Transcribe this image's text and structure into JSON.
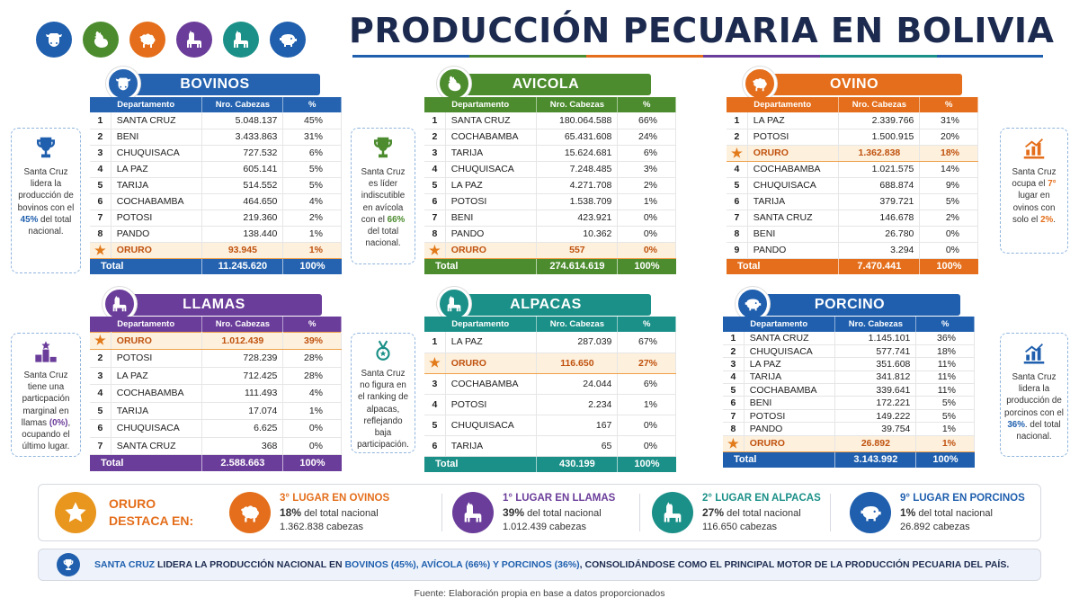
{
  "title": "PRODUCCIÓN PECUARIA EN BOLIVIA",
  "colors": {
    "bovinos": "#2563b0",
    "avicola": "#4c8c2e",
    "ovino": "#e46e1b",
    "llamas": "#6b3d9a",
    "alpacas": "#1b9088",
    "porcino": "#1f5fae",
    "navy": "#1c2a4f"
  },
  "top_icons": [
    "cow-icon",
    "chicken-icon",
    "sheep-icon",
    "llama-icon",
    "alpaca-icon",
    "pig-icon"
  ],
  "col_headers": {
    "dep": "Departamento",
    "cab": "Nro. Cabezas",
    "pct": "%"
  },
  "total_label": "Total",
  "bovinos": {
    "title": "BOVINOS",
    "rows": [
      [
        "1",
        "SANTA CRUZ",
        "5.048.137",
        "45%"
      ],
      [
        "2",
        "BENI",
        "3.433.863",
        "31%"
      ],
      [
        "3",
        "CHUQUISACA",
        "727.532",
        "6%"
      ],
      [
        "4",
        "LA PAZ",
        "605.141",
        "5%"
      ],
      [
        "5",
        "TARIJA",
        "514.552",
        "5%"
      ],
      [
        "6",
        "COCHABAMBA",
        "464.650",
        "4%"
      ],
      [
        "7",
        "POTOSI",
        "219.360",
        "2%"
      ],
      [
        "8",
        "PANDO",
        "138.440",
        "1%"
      ],
      [
        "★",
        "ORURO",
        "93.945",
        "1%"
      ]
    ],
    "highlight": 8,
    "total": [
      "11.245.620",
      "100%"
    ]
  },
  "avicola": {
    "title": "AVICOLA",
    "rows": [
      [
        "1",
        "SANTA CRUZ",
        "180.064.588",
        "66%"
      ],
      [
        "2",
        "COCHABAMBA",
        "65.431.608",
        "24%"
      ],
      [
        "3",
        "TARIJA",
        "15.624.681",
        "6%"
      ],
      [
        "4",
        "CHUQUISACA",
        "7.248.485",
        "3%"
      ],
      [
        "5",
        "LA PAZ",
        "4.271.708",
        "2%"
      ],
      [
        "6",
        "POTOSI",
        "1.538.709",
        "1%"
      ],
      [
        "7",
        "BENI",
        "423.921",
        "0%"
      ],
      [
        "8",
        "PANDO",
        "10.362",
        "0%"
      ],
      [
        "★",
        "ORURO",
        "557",
        "0%"
      ]
    ],
    "highlight": 8,
    "total": [
      "274.614.619",
      "100%"
    ]
  },
  "ovino": {
    "title": "OVINO",
    "rows": [
      [
        "1",
        "LA PAZ",
        "2.339.766",
        "31%"
      ],
      [
        "2",
        "POTOSI",
        "1.500.915",
        "20%"
      ],
      [
        "★",
        "ORURO",
        "1.362.838",
        "18%"
      ],
      [
        "4",
        "COCHABAMBA",
        "1.021.575",
        "14%"
      ],
      [
        "5",
        "CHUQUISACA",
        "688.874",
        "9%"
      ],
      [
        "6",
        "TARIJA",
        "379.721",
        "5%"
      ],
      [
        "7",
        "SANTA CRUZ",
        "146.678",
        "2%"
      ],
      [
        "8",
        "BENI",
        "26.780",
        "0%"
      ],
      [
        "9",
        "PANDO",
        "3.294",
        "0%"
      ]
    ],
    "highlight": 2,
    "total": [
      "7.470.441",
      "100%"
    ]
  },
  "llamas": {
    "title": "LLAMAS",
    "rows": [
      [
        "★",
        "ORURO",
        "1.012.439",
        "39%"
      ],
      [
        "2",
        "POTOSI",
        "728.239",
        "28%"
      ],
      [
        "3",
        "LA PAZ",
        "712.425",
        "28%"
      ],
      [
        "4",
        "COCHABAMBA",
        "111.493",
        "4%"
      ],
      [
        "5",
        "TARIJA",
        "17.074",
        "1%"
      ],
      [
        "6",
        "CHUQUISACA",
        "6.625",
        "0%"
      ],
      [
        "7",
        "SANTA CRUZ",
        "368",
        "0%"
      ]
    ],
    "highlight": 0,
    "total": [
      "2.588.663",
      "100%"
    ]
  },
  "alpacas": {
    "title": "ALPACAS",
    "rows": [
      [
        "1",
        "LA PAZ",
        "287.039",
        "67%"
      ],
      [
        "★",
        "ORURO",
        "116.650",
        "27%"
      ],
      [
        "3",
        "COCHABAMBA",
        "24.044",
        "6%"
      ],
      [
        "4",
        "POTOSI",
        "2.234",
        "1%"
      ],
      [
        "5",
        "CHUQUISACA",
        "167",
        "0%"
      ],
      [
        "6",
        "TARIJA",
        "65",
        "0%"
      ]
    ],
    "highlight": 1,
    "total": [
      "430.199",
      "100%"
    ]
  },
  "porcino": {
    "title": "PORCINO",
    "rows": [
      [
        "1",
        "SANTA CRUZ",
        "1.145.101",
        "36%"
      ],
      [
        "2",
        "CHUQUISACA",
        "577.741",
        "18%"
      ],
      [
        "3",
        "LA PAZ",
        "351.608",
        "11%"
      ],
      [
        "4",
        "TARIJA",
        "341.812",
        "11%"
      ],
      [
        "5",
        "COCHABAMBA",
        "339.641",
        "11%"
      ],
      [
        "6",
        "BENI",
        "172.221",
        "5%"
      ],
      [
        "7",
        "POTOSI",
        "149.222",
        "5%"
      ],
      [
        "8",
        "PANDO",
        "39.754",
        "1%"
      ],
      [
        "★",
        "ORURO",
        "26.892",
        "1%"
      ]
    ],
    "highlight": 8,
    "total": [
      "3.143.992",
      "100%"
    ]
  },
  "side_notes": {
    "bovinos": {
      "a": "Santa Cruz lidera la producción de bovinos con el ",
      "b": "45%",
      "c": " del total nacional."
    },
    "avicola": {
      "a": "Santa Cruz es líder indiscutible en avícola con el ",
      "b": "66%",
      "c": " del total nacional."
    },
    "ovino": {
      "a": "Santa Cruz ocupa el ",
      "b": "7°",
      "c": " lugar en ovinos con solo el ",
      "d": "2%",
      "e": "."
    },
    "llamas": {
      "a": "Santa Cruz tiene una particpación marginal en llamas ",
      "b": "(0%)",
      "c": ", ocupando el último lugar."
    },
    "alpacas": {
      "a": "Santa Cruz no figura en el ranking de alpacas, reflejando baja participación."
    },
    "porcino": {
      "a": "Santa Cruz lidera la producción de porcinos con el ",
      "b": "36%",
      "c": ". del total nacional."
    }
  },
  "oruro_bar": {
    "heading1": "ORURO",
    "heading2": "DESTACA EN:",
    "items": [
      {
        "place": "3°",
        "label": " LUGAR EN OVINOS",
        "pct": "18%",
        "pct_text": " del total nacional",
        "count": "1.362.838 cabezas"
      },
      {
        "place": "1°",
        "label": " LUGAR EN LLAMAS",
        "pct": "39%",
        "pct_text": " del total nacional",
        "count": "1.012.439 cabezas"
      },
      {
        "place": "2°",
        "label": " LUGAR EN ALPACAS",
        "pct": "27%",
        "pct_text": " del total nacional",
        "count": "116.650 cabezas"
      },
      {
        "place": "9°",
        "label": " LUGAR EN PORCINOS",
        "pct": "1%",
        "pct_text": " del total nacional",
        "count": "26.892 cabezas"
      }
    ]
  },
  "summary": {
    "p1": "SANTA CRUZ",
    "p2": " LIDERA LA PRODUCCIÓN NACIONAL EN ",
    "p3": "BOVINOS (45%), AVÍCOLA (66%) Y PORCINOS (36%)",
    "p4": ", CONSOLIDÁNDOSE COMO EL PRINCIPAL MOTOR DE LA PRODUCCIÓN PECUARIA DEL PAÍS."
  },
  "footer": "Fuente: Elaboración propia en base a datos proporcionados"
}
